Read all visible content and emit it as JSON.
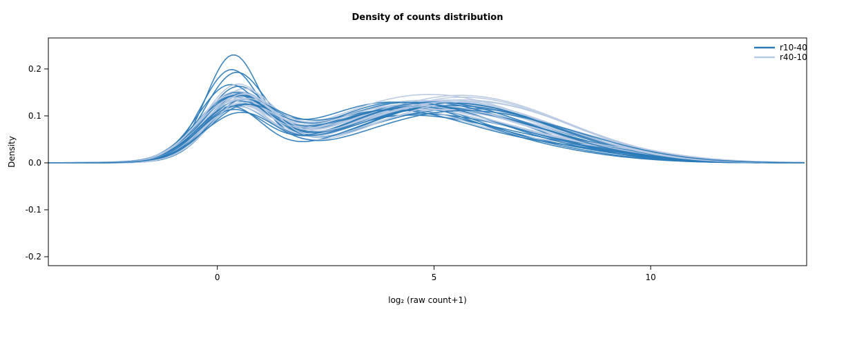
{
  "page": {
    "title": "Density of counts distribution"
  },
  "chart_data": {
    "type": "line",
    "title": "Density of counts distribution",
    "xlabel": "log₂ (raw count+1)",
    "ylabel": "Density",
    "x_range": [
      -3.9,
      13.6
    ],
    "y_range": [
      -0.219,
      0.266
    ],
    "x_ticks": [
      0,
      5,
      10
    ],
    "y_ticks": [
      -0.2,
      -0.1,
      0.0,
      0.1,
      0.2
    ],
    "grid": false,
    "legend_position": "top-right",
    "curve_model": "each curve = sum of 3 gaussians, params [a1,m1,s1,a2,m2,s2,a3,m3,s3], y(x)=Σ a·exp(-(x-m)²/(2s²))",
    "series": [
      {
        "name": "r10-40",
        "color": "#2b7bb9",
        "curves": [
          [
            0.215,
            0.35,
            0.62,
            0.095,
            4.2,
            2.0,
            0.03,
            7.5,
            1.8
          ],
          [
            0.185,
            0.3,
            0.68,
            0.1,
            4.5,
            2.1,
            0.025,
            7.8,
            1.7
          ],
          [
            0.175,
            0.4,
            0.7,
            0.105,
            4.0,
            1.9,
            0.03,
            7.2,
            1.9
          ],
          [
            0.15,
            0.45,
            0.75,
            0.11,
            4.6,
            2.0,
            0.035,
            7.6,
            1.8
          ],
          [
            0.145,
            0.25,
            0.72,
            0.115,
            4.3,
            2.2,
            0.02,
            8.0,
            1.6
          ],
          [
            0.14,
            0.55,
            0.8,
            0.1,
            5.0,
            2.0,
            0.04,
            7.0,
            2.0
          ],
          [
            0.135,
            0.35,
            0.78,
            0.125,
            4.1,
            1.8,
            0.025,
            7.4,
            1.7
          ],
          [
            0.13,
            0.5,
            0.74,
            0.108,
            4.8,
            2.1,
            0.03,
            7.9,
            1.9
          ],
          [
            0.128,
            0.3,
            0.82,
            0.112,
            4.4,
            2.0,
            0.035,
            6.8,
            1.8
          ],
          [
            0.125,
            0.6,
            0.76,
            0.105,
            5.2,
            2.2,
            0.028,
            7.6,
            1.6
          ],
          [
            0.122,
            0.4,
            0.8,
            0.125,
            3.9,
            1.9,
            0.022,
            7.2,
            1.8
          ],
          [
            0.12,
            0.45,
            0.85,
            0.11,
            4.7,
            2.0,
            0.032,
            7.8,
            1.7
          ],
          [
            0.118,
            0.35,
            0.78,
            0.102,
            4.2,
            2.3,
            0.038,
            6.9,
            2.0
          ],
          [
            0.115,
            0.55,
            0.82,
            0.115,
            4.5,
            1.8,
            0.026,
            7.5,
            1.8
          ],
          [
            0.112,
            0.28,
            0.75,
            0.108,
            5.1,
            2.1,
            0.03,
            7.1,
            1.9
          ],
          [
            0.11,
            0.48,
            0.88,
            0.112,
            4.0,
            2.0,
            0.024,
            8.2,
            1.6
          ],
          [
            0.108,
            0.38,
            0.8,
            0.105,
            4.9,
            2.2,
            0.034,
            7.3,
            1.8
          ],
          [
            0.105,
            0.58,
            0.84,
            0.125,
            4.3,
            1.9,
            0.028,
            7.7,
            1.7
          ],
          [
            0.102,
            0.32,
            0.78,
            0.11,
            4.6,
            2.0,
            0.036,
            7.0,
            2.0
          ],
          [
            0.1,
            0.5,
            0.86,
            0.1,
            5.3,
            2.1,
            0.03,
            8.0,
            1.8
          ]
        ]
      },
      {
        "name": "r40-10",
        "color": "#b7c9e3",
        "curves": [
          [
            0.105,
            0.45,
            0.8,
            0.115,
            4.6,
            2.2,
            0.04,
            7.8,
            2.0
          ],
          [
            0.128,
            0.35,
            0.75,
            0.11,
            4.2,
            2.0,
            0.035,
            7.5,
            1.9
          ],
          [
            0.135,
            0.5,
            0.78,
            0.125,
            4.8,
            2.1,
            0.03,
            8.0,
            1.8
          ],
          [
            0.12,
            0.3,
            0.82,
            0.105,
            5.0,
            2.3,
            0.045,
            7.2,
            2.0
          ],
          [
            0.14,
            0.55,
            0.76,
            0.112,
            4.4,
            2.0,
            0.038,
            7.6,
            1.9
          ],
          [
            0.115,
            0.4,
            0.85,
            0.118,
            4.0,
            1.9,
            0.032,
            8.3,
            1.7
          ],
          [
            0.13,
            0.6,
            0.8,
            0.108,
            5.2,
            2.2,
            0.042,
            7.0,
            2.1
          ],
          [
            0.125,
            0.35,
            0.78,
            0.128,
            4.5,
            2.0,
            0.028,
            7.9,
            1.8
          ],
          [
            0.11,
            0.48,
            0.84,
            0.115,
            4.9,
            2.1,
            0.036,
            7.4,
            2.0
          ],
          [
            0.145,
            0.42,
            0.74,
            0.105,
            4.3,
            2.2,
            0.04,
            7.7,
            1.9
          ],
          [
            0.118,
            0.55,
            0.82,
            0.12,
            4.7,
            1.9,
            0.03,
            8.1,
            1.7
          ],
          [
            0.132,
            0.3,
            0.76,
            0.11,
            5.1,
            2.3,
            0.044,
            6.9,
            2.1
          ],
          [
            0.122,
            0.5,
            0.8,
            0.116,
            4.1,
            2.0,
            0.034,
            7.8,
            1.8
          ],
          [
            0.108,
            0.38,
            0.86,
            0.112,
            4.6,
            2.1,
            0.038,
            7.3,
            2.0
          ],
          [
            0.138,
            0.58,
            0.78,
            0.106,
            5.0,
            2.0,
            0.032,
            8.2,
            1.8
          ],
          [
            0.115,
            0.33,
            0.82,
            0.126,
            4.4,
            2.2,
            0.042,
            7.1,
            2.0
          ],
          [
            0.127,
            0.52,
            0.76,
            0.114,
            4.8,
            1.9,
            0.028,
            7.9,
            1.9
          ],
          [
            0.112,
            0.44,
            0.84,
            0.108,
            5.3,
            2.1,
            0.04,
            7.5,
            1.8
          ],
          [
            0.133,
            0.36,
            0.8,
            0.118,
            4.2,
            2.0,
            0.034,
            8.0,
            2.0
          ],
          [
            0.12,
            0.62,
            0.78,
            0.11,
            4.9,
            2.2,
            0.036,
            7.2,
            1.9
          ]
        ]
      }
    ]
  }
}
